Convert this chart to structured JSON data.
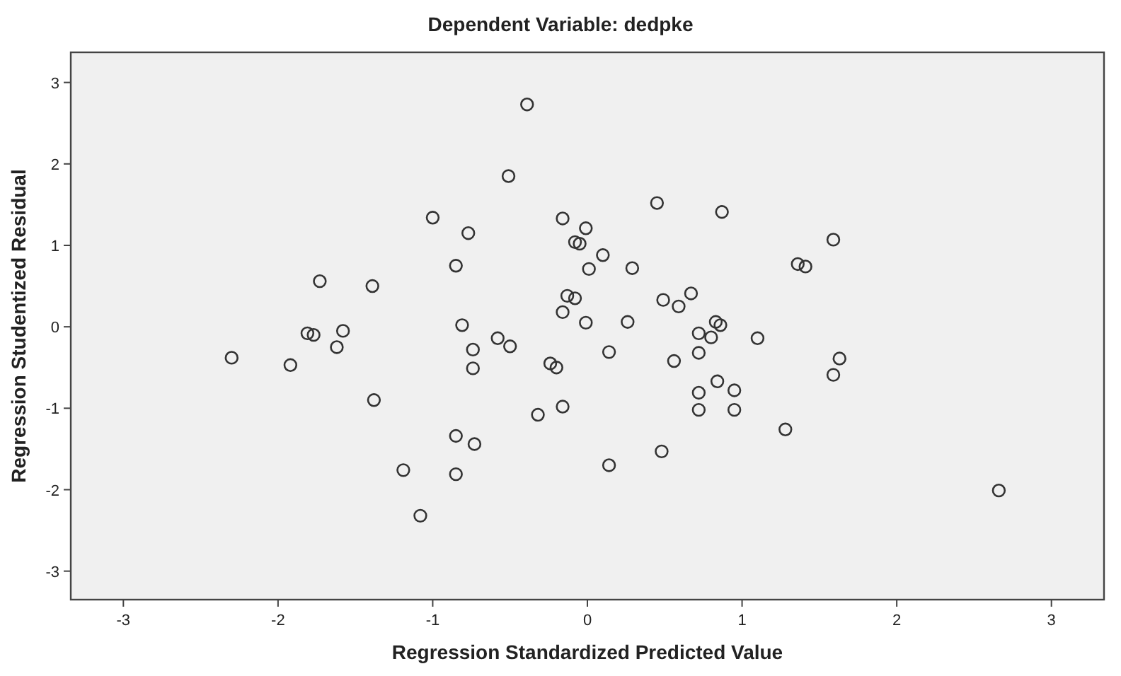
{
  "chart_data": {
    "type": "scatter",
    "title": "Dependent Variable: dedpke",
    "xlabel": "Regression Standardized Predicted Value",
    "ylabel": "Regression Studentized Residual",
    "xlim": [
      -3.34,
      3.34
    ],
    "ylim": [
      -3.35,
      3.37
    ],
    "xticks": [
      -3,
      -2,
      -1,
      0,
      1,
      2,
      3
    ],
    "yticks": [
      -3,
      -2,
      -1,
      0,
      1,
      2,
      3
    ],
    "grid": false,
    "marker": "circle",
    "series": [
      {
        "color": "#333333",
        "x": [
          -0.39,
          -0.51,
          -1.0,
          -0.77,
          -0.16,
          -0.01,
          -0.08,
          -0.05,
          0.01,
          -0.85,
          -1.73,
          -1.39,
          -0.13,
          -0.08,
          -0.16,
          -0.01,
          -0.81,
          -1.81,
          -1.77,
          -1.58,
          -0.58,
          0.45,
          0.87,
          1.59,
          0.1,
          0.29,
          1.36,
          1.41,
          0.49,
          0.59,
          0.67,
          0.26,
          0.83,
          0.86,
          0.72,
          0.8,
          1.1,
          0.14,
          0.56,
          0.72,
          1.63,
          1.59,
          0.84,
          0.72,
          0.95,
          0.72,
          0.95,
          1.28,
          0.48,
          0.14,
          2.66,
          -1.62,
          -2.3,
          -1.92,
          -0.74,
          -0.5,
          -0.74,
          -0.24,
          -0.2,
          -1.38,
          -0.32,
          -0.16,
          -0.85,
          -0.73,
          -1.19,
          -0.85,
          -1.08
        ],
        "values": [
          2.73,
          1.85,
          1.34,
          1.15,
          1.33,
          1.21,
          1.04,
          1.02,
          0.71,
          0.75,
          0.56,
          0.5,
          0.38,
          0.35,
          0.18,
          0.05,
          0.02,
          -0.08,
          -0.1,
          -0.05,
          -0.14,
          1.52,
          1.41,
          1.07,
          0.88,
          0.72,
          0.77,
          0.74,
          0.33,
          0.25,
          0.41,
          0.06,
          0.06,
          0.02,
          -0.08,
          -0.13,
          -0.14,
          -0.31,
          -0.42,
          -0.32,
          -0.39,
          -0.59,
          -0.67,
          -0.81,
          -0.78,
          -1.02,
          -1.02,
          -1.26,
          -1.53,
          -1.7,
          -2.01,
          -0.25,
          -0.38,
          -0.47,
          -0.28,
          -0.24,
          -0.51,
          -0.45,
          -0.5,
          -0.9,
          -1.08,
          -0.98,
          -1.34,
          -1.44,
          -1.76,
          -1.81,
          -2.32
        ]
      }
    ]
  }
}
